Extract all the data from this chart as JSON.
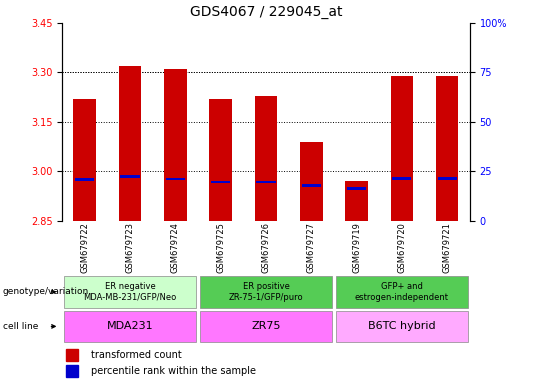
{
  "title": "GDS4067 / 229045_at",
  "samples": [
    "GSM679722",
    "GSM679723",
    "GSM679724",
    "GSM679725",
    "GSM679726",
    "GSM679727",
    "GSM679719",
    "GSM679720",
    "GSM679721"
  ],
  "red_values": [
    3.22,
    3.32,
    3.31,
    3.22,
    3.23,
    3.09,
    2.97,
    3.29,
    3.29
  ],
  "blue_values": [
    2.975,
    2.985,
    2.977,
    2.968,
    2.968,
    2.958,
    2.948,
    2.978,
    2.978
  ],
  "ylim_left": [
    2.85,
    3.45
  ],
  "yticks_left": [
    2.85,
    3.0,
    3.15,
    3.3,
    3.45
  ],
  "ylim_right": [
    0,
    100
  ],
  "yticks_right": [
    0,
    25,
    50,
    75,
    100
  ],
  "ytick_labels_right": [
    "0",
    "25",
    "50",
    "75",
    "100%"
  ],
  "geno_groups": [
    {
      "label": "ER negative\nMDA-MB-231/GFP/Neo",
      "start": 0,
      "end": 3,
      "color": "#ccffcc"
    },
    {
      "label": "ER positive\nZR-75-1/GFP/puro",
      "start": 3,
      "end": 6,
      "color": "#55cc55"
    },
    {
      "label": "GFP+ and\nestrogen-independent",
      "start": 6,
      "end": 9,
      "color": "#55cc55"
    }
  ],
  "cell_groups": [
    {
      "label": "MDA231",
      "start": 0,
      "end": 3,
      "color": "#ff77ff"
    },
    {
      "label": "ZR75",
      "start": 3,
      "end": 6,
      "color": "#ff77ff"
    },
    {
      "label": "B6TC hybrid",
      "start": 6,
      "end": 9,
      "color": "#ffaaff"
    }
  ],
  "genotype_label": "genotype/variation",
  "cell_line_label": "cell line",
  "legend_red": "transformed count",
  "legend_blue": "percentile rank within the sample",
  "bar_width": 0.5,
  "red_color": "#cc0000",
  "blue_color": "#0000cc",
  "title_fontsize": 10,
  "tick_fontsize": 7,
  "sample_fontsize": 6,
  "group_fontsize": 6,
  "cell_fontsize": 8,
  "legend_fontsize": 7
}
